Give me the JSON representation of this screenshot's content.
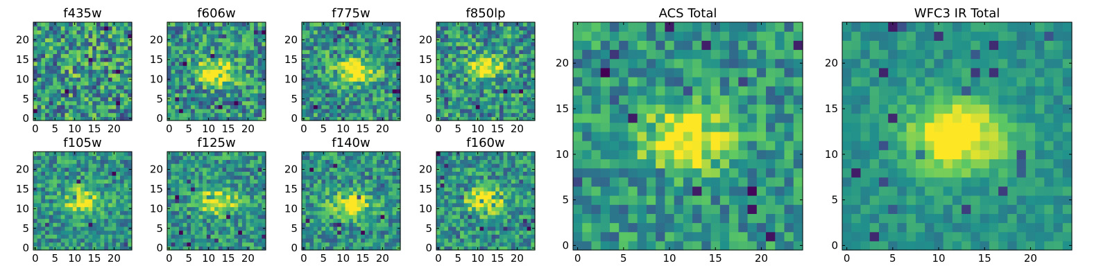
{
  "figure": {
    "colormap": "viridis",
    "colormap_stops": [
      "#440154",
      "#3b528b",
      "#21918c",
      "#5ec962",
      "#fde725"
    ],
    "background": "#ffffff",
    "axis_color": "#000000"
  },
  "chart_data": [
    {
      "id": "f435w",
      "type": "heatmap",
      "title": "f435w",
      "grid_size": 25,
      "xlim": [
        0,
        24
      ],
      "ylim": [
        0,
        24
      ],
      "xticks": [
        "0",
        "5",
        "10",
        "15",
        "20"
      ],
      "yticks": [
        "0",
        "5",
        "10",
        "15",
        "20"
      ],
      "source_peak": {
        "x": 12,
        "y": 12
      },
      "peak_level": 0.06,
      "noise_level": 0.34
    },
    {
      "id": "f606w",
      "type": "heatmap",
      "title": "f606w",
      "grid_size": 25,
      "xlim": [
        0,
        24
      ],
      "ylim": [
        0,
        24
      ],
      "xticks": [
        "0",
        "5",
        "10",
        "15",
        "20"
      ],
      "yticks": [
        "0",
        "5",
        "10",
        "15",
        "20"
      ],
      "source_peak": {
        "x": 12,
        "y": 12
      },
      "peak_level": 0.55,
      "noise_level": 0.3
    },
    {
      "id": "f775w",
      "type": "heatmap",
      "title": "f775w",
      "grid_size": 25,
      "xlim": [
        0,
        24
      ],
      "ylim": [
        0,
        24
      ],
      "xticks": [
        "0",
        "5",
        "10",
        "15",
        "20"
      ],
      "yticks": [
        "0",
        "5",
        "10",
        "15",
        "20"
      ],
      "source_peak": {
        "x": 13,
        "y": 12
      },
      "peak_level": 0.62,
      "noise_level": 0.28
    },
    {
      "id": "f850lp",
      "type": "heatmap",
      "title": "f850lp",
      "grid_size": 25,
      "xlim": [
        0,
        24
      ],
      "ylim": [
        0,
        24
      ],
      "xticks": [
        "0",
        "5",
        "10",
        "15",
        "20"
      ],
      "yticks": [
        "0",
        "5",
        "10",
        "15",
        "20"
      ],
      "source_peak": {
        "x": 12,
        "y": 13
      },
      "peak_level": 0.52,
      "noise_level": 0.3
    },
    {
      "id": "f105w",
      "type": "heatmap",
      "title": "f105w",
      "grid_size": 25,
      "xlim": [
        0,
        24
      ],
      "ylim": [
        0,
        24
      ],
      "xticks": [
        "0",
        "5",
        "10",
        "15",
        "20"
      ],
      "yticks": [
        "0",
        "5",
        "10",
        "15",
        "20"
      ],
      "source_peak": {
        "x": 12,
        "y": 12
      },
      "peak_level": 0.58,
      "noise_level": 0.24
    },
    {
      "id": "f125w",
      "type": "heatmap",
      "title": "f125w",
      "grid_size": 25,
      "xlim": [
        0,
        24
      ],
      "ylim": [
        0,
        24
      ],
      "xticks": [
        "0",
        "5",
        "10",
        "15",
        "20"
      ],
      "yticks": [
        "0",
        "5",
        "10",
        "15",
        "20"
      ],
      "source_peak": {
        "x": 12,
        "y": 12
      },
      "peak_level": 0.58,
      "noise_level": 0.24
    },
    {
      "id": "f140w",
      "type": "heatmap",
      "title": "f140w",
      "grid_size": 25,
      "xlim": [
        0,
        24
      ],
      "ylim": [
        0,
        24
      ],
      "xticks": [
        "0",
        "5",
        "10",
        "15",
        "20"
      ],
      "yticks": [
        "0",
        "5",
        "10",
        "15",
        "20"
      ],
      "source_peak": {
        "x": 12,
        "y": 11
      },
      "peak_level": 0.58,
      "noise_level": 0.24
    },
    {
      "id": "f160w",
      "type": "heatmap",
      "title": "f160w",
      "grid_size": 25,
      "xlim": [
        0,
        24
      ],
      "ylim": [
        0,
        24
      ],
      "xticks": [
        "0",
        "5",
        "10",
        "15",
        "20"
      ],
      "yticks": [
        "0",
        "5",
        "10",
        "15",
        "20"
      ],
      "source_peak": {
        "x": 12,
        "y": 12
      },
      "peak_level": 0.6,
      "noise_level": 0.24
    },
    {
      "id": "acs-total",
      "type": "heatmap",
      "title": "ACS Total",
      "grid_size": 25,
      "xlim": [
        0,
        24
      ],
      "ylim": [
        0,
        24
      ],
      "xticks": [
        "0",
        "5",
        "10",
        "15",
        "20"
      ],
      "yticks": [
        "0",
        "5",
        "10",
        "15",
        "20"
      ],
      "source_peak": {
        "x": 12,
        "y": 12
      },
      "peak_level": 0.62,
      "noise_level": 0.22
    },
    {
      "id": "wfc3-ir-total",
      "type": "heatmap",
      "title": "WFC3 IR Total",
      "grid_size": 25,
      "xlim": [
        0,
        24
      ],
      "ylim": [
        0,
        24
      ],
      "xticks": [
        "0",
        "5",
        "10",
        "15",
        "20"
      ],
      "yticks": [
        "0",
        "5",
        "10",
        "15",
        "20"
      ],
      "source_peak": {
        "x": 12,
        "y": 12
      },
      "peak_level": 0.7,
      "noise_level": 0.12
    }
  ]
}
